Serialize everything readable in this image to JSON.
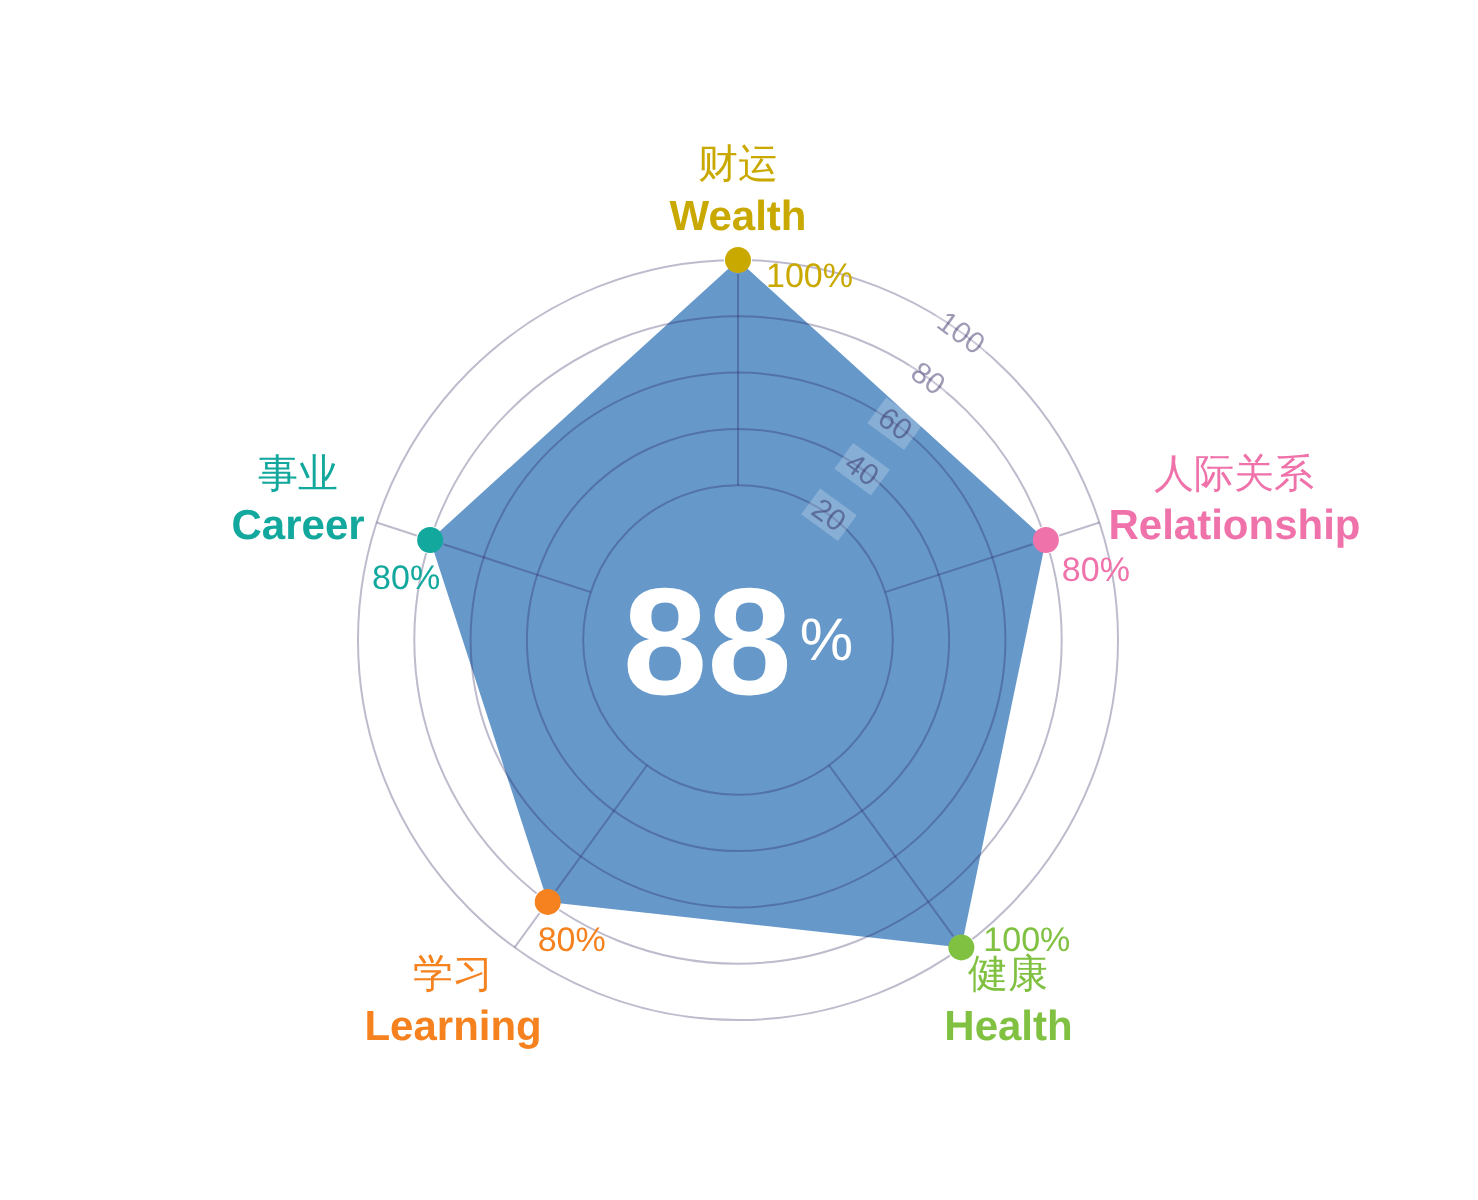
{
  "chart_data": {
    "type": "radar",
    "categories": [
      "财运\nWealth",
      "人际关系\nRelationship",
      "健康\nHealth",
      "学习\nLearning",
      "事业\nCareer"
    ],
    "series": [
      {
        "color": "#6698ca",
        "colors": [
          "#c9a900",
          "#ef72aa",
          "#80c142",
          "#f5821f",
          "#12a89d"
        ],
        "values": [
          100,
          80,
          100,
          80,
          80
        ],
        "value_labels": [
          "100%",
          "80%",
          "100%",
          "80%",
          "80%"
        ]
      }
    ],
    "ylim": [
      -35,
      100
    ],
    "yticks": [
      20,
      40,
      60,
      80,
      100
    ],
    "grid": true,
    "marker": "circle",
    "annotations": [
      "88%"
    ]
  }
}
